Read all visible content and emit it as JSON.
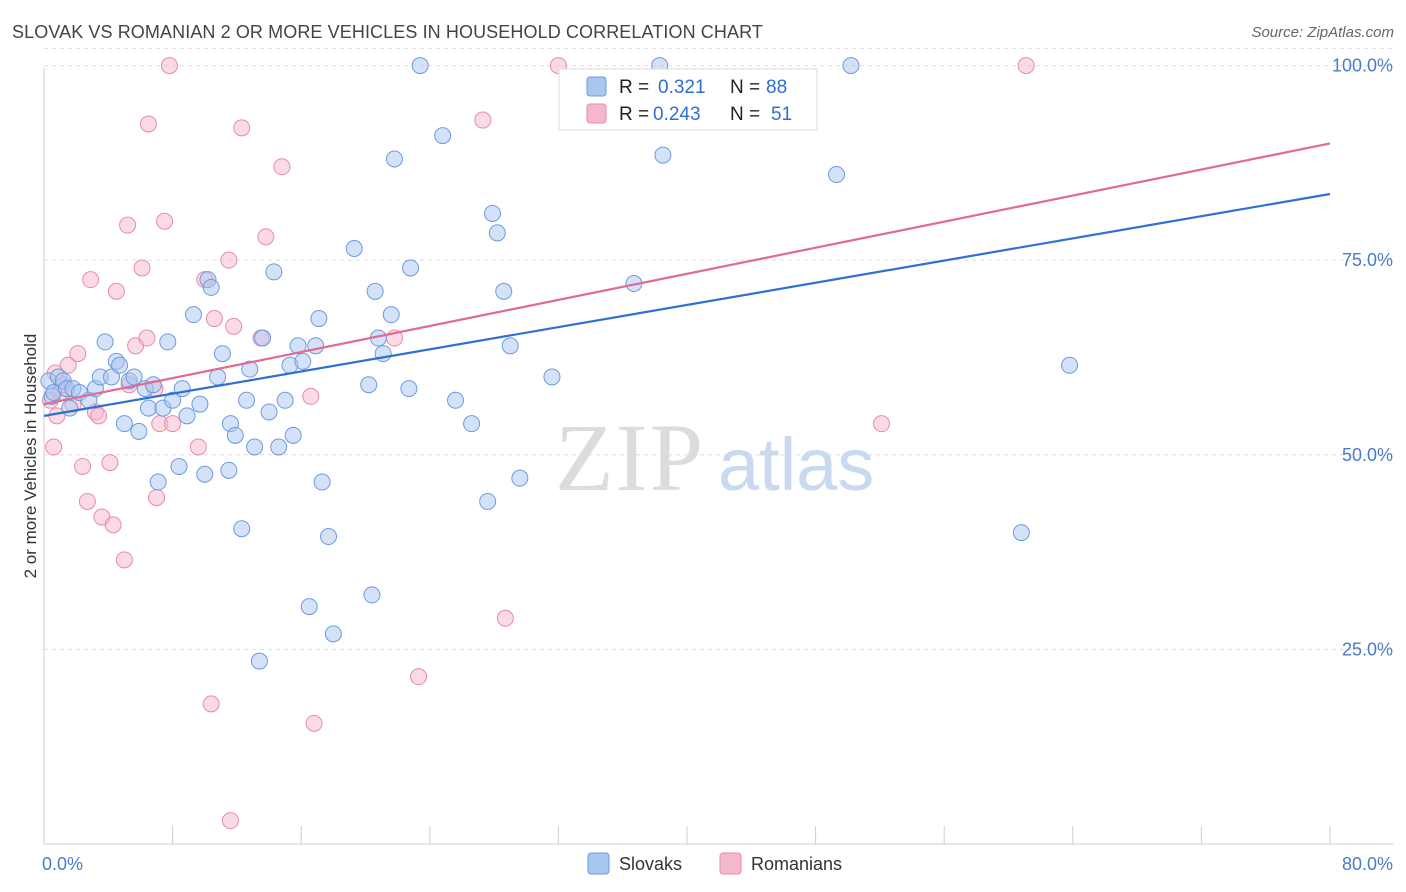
{
  "header": {
    "title": "SLOVAK VS ROMANIAN 2 OR MORE VEHICLES IN HOUSEHOLD CORRELATION CHART",
    "source": "Source: ZipAtlas.com"
  },
  "watermark": {
    "zip": "ZIP",
    "atlas": "atlas"
  },
  "legend": {
    "rows": [
      {
        "r_label": "R =",
        "r_value": "0.321",
        "n_label": "N =",
        "n_value": "88"
      },
      {
        "r_label": "R =",
        "r_value": "0.243",
        "n_label": "N =",
        "n_value": "51"
      }
    ]
  },
  "bottom_legend": {
    "series1": "Slovaks",
    "series2": "Romanians"
  },
  "colors": {
    "slovak_fill": "#a9c6f0",
    "slovak_stroke": "#6d9ae0",
    "slovak_line": "#2f6fd1",
    "romanian_fill": "#f5b8cb",
    "romanian_stroke": "#e98aa9",
    "romanian_line": "#e06a94",
    "tick_text": "#4a7cc9",
    "grid": "#dddddd"
  },
  "chart_data": {
    "type": "scatter",
    "title": "SLOVAK VS ROMANIAN 2 OR MORE VEHICLES IN HOUSEHOLD CORRELATION CHART",
    "xlabel": "",
    "ylabel": "2 or more Vehicles in Household",
    "xlim": [
      0,
      80
    ],
    "ylim": [
      0,
      102
    ],
    "x_tick_labels": [
      "0.0%",
      "80.0%"
    ],
    "y_ticks": [
      25,
      50,
      75,
      100
    ],
    "y_tick_labels": [
      "25.0%",
      "50.0%",
      "75.0%",
      "100.0%"
    ],
    "grid": true,
    "legend_position": "top-center",
    "series": [
      {
        "name": "Slovaks",
        "r": 0.321,
        "n": 88,
        "trend": {
          "x": [
            0,
            80
          ],
          "y": [
            55.0,
            83.5
          ]
        },
        "points": [
          [
            0.3,
            59.5
          ],
          [
            0.5,
            57.5
          ],
          [
            0.6,
            58.0
          ],
          [
            0.9,
            60.0
          ],
          [
            1.2,
            59.5
          ],
          [
            1.4,
            58.5
          ],
          [
            1.6,
            56.0
          ],
          [
            1.8,
            58.5
          ],
          [
            2.2,
            58.0
          ],
          [
            2.8,
            57.0
          ],
          [
            3.2,
            58.5
          ],
          [
            3.5,
            60.0
          ],
          [
            3.8,
            64.5
          ],
          [
            4.2,
            60.0
          ],
          [
            4.5,
            62.0
          ],
          [
            4.7,
            61.5
          ],
          [
            5.0,
            54.0
          ],
          [
            5.3,
            59.5
          ],
          [
            5.6,
            60.0
          ],
          [
            5.9,
            53.0
          ],
          [
            6.3,
            58.5
          ],
          [
            6.5,
            56.0
          ],
          [
            6.8,
            59.0
          ],
          [
            7.1,
            46.5
          ],
          [
            7.4,
            56.0
          ],
          [
            7.7,
            64.5
          ],
          [
            8.0,
            57.0
          ],
          [
            8.4,
            48.5
          ],
          [
            8.6,
            58.5
          ],
          [
            8.9,
            55.0
          ],
          [
            9.3,
            68.0
          ],
          [
            9.7,
            56.5
          ],
          [
            10.0,
            47.5
          ],
          [
            10.2,
            72.5
          ],
          [
            10.4,
            71.5
          ],
          [
            10.8,
            60.0
          ],
          [
            11.1,
            63.0
          ],
          [
            11.5,
            48.0
          ],
          [
            11.6,
            54.0
          ],
          [
            11.9,
            52.5
          ],
          [
            12.3,
            40.5
          ],
          [
            12.6,
            57.0
          ],
          [
            12.8,
            61.0
          ],
          [
            13.1,
            51.0
          ],
          [
            13.4,
            23.5
          ],
          [
            13.6,
            65.0
          ],
          [
            14.0,
            55.5
          ],
          [
            14.3,
            73.5
          ],
          [
            14.6,
            51.0
          ],
          [
            15.0,
            57.0
          ],
          [
            15.3,
            61.5
          ],
          [
            15.5,
            52.5
          ],
          [
            15.8,
            64.0
          ],
          [
            16.1,
            62.0
          ],
          [
            16.5,
            30.5
          ],
          [
            16.9,
            64.0
          ],
          [
            17.1,
            67.5
          ],
          [
            17.3,
            46.5
          ],
          [
            17.7,
            39.5
          ],
          [
            18.0,
            27.0
          ],
          [
            19.3,
            76.5
          ],
          [
            20.2,
            59.0
          ],
          [
            20.4,
            32.0
          ],
          [
            20.6,
            71.0
          ],
          [
            20.8,
            65.0
          ],
          [
            21.1,
            63.0
          ],
          [
            21.6,
            68.0
          ],
          [
            21.8,
            88.0
          ],
          [
            22.7,
            58.5
          ],
          [
            22.8,
            74.0
          ],
          [
            23.4,
            100.0
          ],
          [
            24.8,
            91.0
          ],
          [
            25.6,
            57.0
          ],
          [
            26.6,
            54.0
          ],
          [
            27.6,
            44.0
          ],
          [
            27.9,
            81.0
          ],
          [
            28.2,
            78.5
          ],
          [
            28.6,
            71.0
          ],
          [
            29.0,
            64.0
          ],
          [
            29.6,
            47.0
          ],
          [
            31.6,
            60.0
          ],
          [
            36.7,
            72.0
          ],
          [
            38.3,
            100.0
          ],
          [
            38.5,
            88.5
          ],
          [
            49.3,
            86.0
          ],
          [
            50.2,
            100.0
          ],
          [
            60.8,
            40.0
          ],
          [
            63.8,
            61.5
          ]
        ]
      },
      {
        "name": "Romanians",
        "r": 0.243,
        "n": 51,
        "trend": {
          "x": [
            0,
            80
          ],
          "y": [
            56.5,
            90.0
          ]
        },
        "points": [
          [
            0.4,
            57.0
          ],
          [
            0.6,
            51.0
          ],
          [
            0.8,
            55.0
          ],
          [
            1.0,
            58.0
          ],
          [
            1.5,
            61.5
          ],
          [
            1.8,
            56.5
          ],
          [
            2.1,
            63.0
          ],
          [
            2.4,
            48.5
          ],
          [
            2.7,
            44.0
          ],
          [
            3.2,
            55.5
          ],
          [
            3.6,
            42.0
          ],
          [
            4.1,
            49.0
          ],
          [
            4.5,
            71.0
          ],
          [
            5.0,
            36.5
          ],
          [
            5.3,
            59.0
          ],
          [
            5.7,
            64.0
          ],
          [
            6.1,
            74.0
          ],
          [
            6.4,
            65.0
          ],
          [
            6.5,
            92.5
          ],
          [
            7.0,
            44.5
          ],
          [
            7.2,
            54.0
          ],
          [
            7.5,
            80.0
          ],
          [
            7.8,
            100.0
          ],
          [
            8.0,
            54.0
          ],
          [
            9.6,
            51.0
          ],
          [
            10.0,
            72.5
          ],
          [
            10.4,
            18.0
          ],
          [
            10.6,
            67.5
          ],
          [
            11.5,
            75.0
          ],
          [
            11.6,
            3.0
          ],
          [
            11.8,
            66.5
          ],
          [
            12.3,
            92.0
          ],
          [
            13.5,
            65.0
          ],
          [
            13.8,
            78.0
          ],
          [
            14.8,
            87.0
          ],
          [
            16.6,
            57.5
          ],
          [
            16.8,
            15.5
          ],
          [
            21.8,
            65.0
          ],
          [
            23.3,
            21.5
          ],
          [
            27.3,
            93.0
          ],
          [
            28.7,
            29.0
          ],
          [
            32.0,
            100.0
          ],
          [
            52.1,
            54.0
          ],
          [
            61.1,
            100.0
          ],
          [
            2.9,
            72.5
          ],
          [
            3.4,
            55.0
          ],
          [
            4.3,
            41.0
          ],
          [
            5.2,
            79.5
          ],
          [
            1.2,
            59.0
          ],
          [
            0.7,
            60.5
          ],
          [
            6.9,
            58.5
          ]
        ]
      }
    ]
  }
}
